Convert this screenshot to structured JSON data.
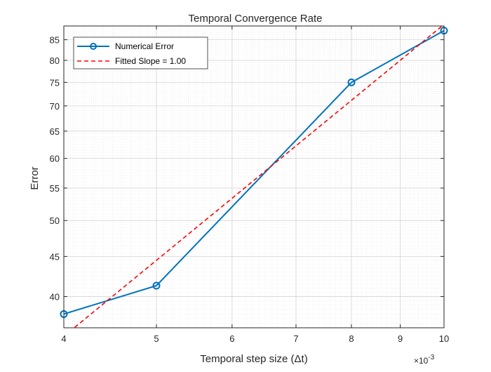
{
  "chart_data": {
    "type": "line",
    "title": "Temporal Convergence Rate",
    "xlabel": "Temporal step size (Δt)",
    "ylabel": "Error",
    "x_scale": "log",
    "y_scale": "log",
    "x_exponent_label": "×10",
    "x_exponent_power": "-3",
    "xlim": [
      0.004,
      0.01
    ],
    "ylim": [
      36.5,
      88.5
    ],
    "grid": true,
    "minor_grid": true,
    "legend_position": "top-left",
    "x_ticks": [
      0.004,
      0.005,
      0.006,
      0.007,
      0.008,
      0.009,
      0.01
    ],
    "x_tick_labels": [
      "4",
      "5",
      "6",
      "7",
      "8",
      "9",
      "10"
    ],
    "y_ticks": [
      40,
      45,
      50,
      55,
      60,
      65,
      70,
      75,
      80,
      85
    ],
    "y_tick_labels": [
      "40",
      "45",
      "50",
      "55",
      "60",
      "65",
      "70",
      "75",
      "80",
      "85"
    ],
    "series": [
      {
        "name": "Numerical Error",
        "color": "#0072BD",
        "style": "solid",
        "marker": "circle",
        "x": [
          0.004,
          0.005,
          0.008,
          0.01
        ],
        "y": [
          38.0,
          41.3,
          75.0,
          87.3
        ]
      },
      {
        "name": "Fitted Slope = 1.00",
        "color": "#FF0000",
        "style": "dashed",
        "marker": "none",
        "x": [
          0.004,
          0.01
        ],
        "y": [
          35.6,
          88.9
        ]
      }
    ]
  }
}
